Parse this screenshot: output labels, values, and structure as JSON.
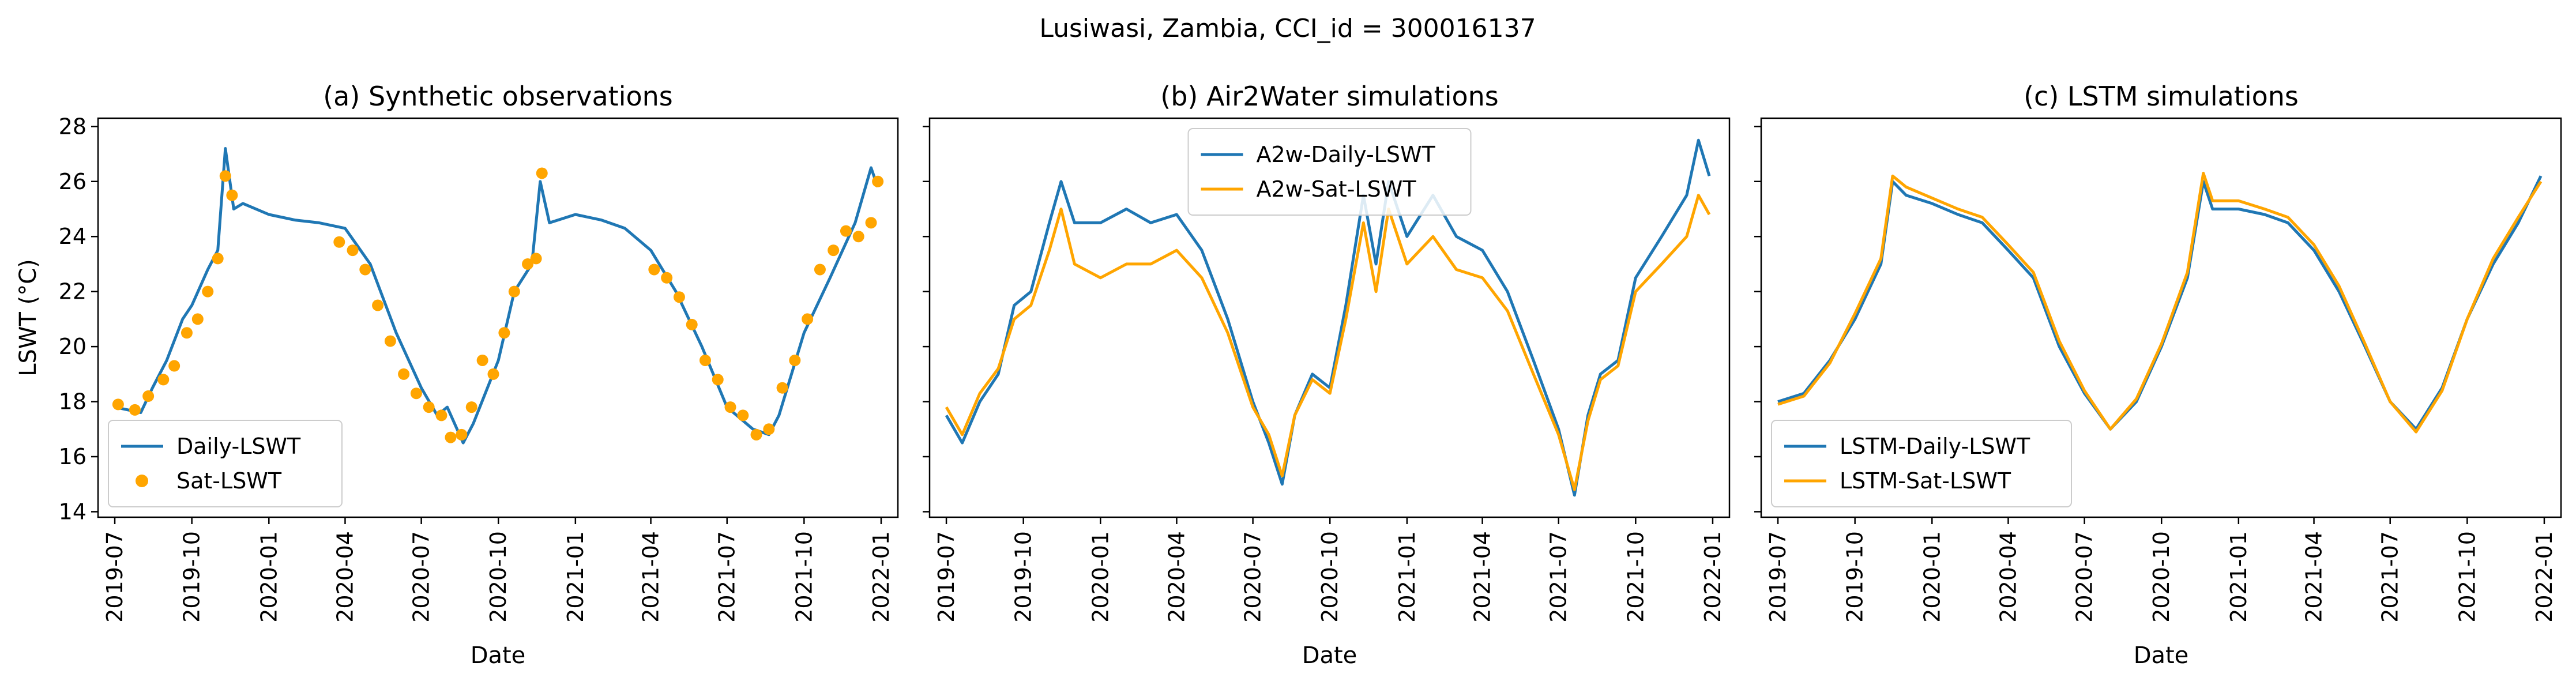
{
  "figure": {
    "suptitle": "Lusiwasi, Zambia, CCI_id = 300016137"
  },
  "colors": {
    "blue": "#1f77b4",
    "orange": "#ffa500"
  },
  "chart_data": [
    {
      "type": "line",
      "title": "(a) Synthetic observations",
      "xlabel": "Date",
      "ylabel": "LSWT (°C)",
      "xticks": [
        "2019-07",
        "2019-10",
        "2020-01",
        "2020-04",
        "2020-07",
        "2020-10",
        "2021-01",
        "2021-04",
        "2021-07",
        "2021-10",
        "2022-01"
      ],
      "yticks": [
        14,
        16,
        18,
        20,
        22,
        24,
        26,
        28
      ],
      "ylim": [
        13.8,
        28.3
      ],
      "xlim": [
        "2019-06-11",
        "2022-01-21"
      ],
      "grid": false,
      "legend": "lower left",
      "series": [
        {
          "name": "Daily-LSWT",
          "kind": "line",
          "color": "#1f77b4",
          "x": [
            "2019-07-01",
            "2019-08-01",
            "2019-08-15",
            "2019-09-01",
            "2019-09-20",
            "2019-10-01",
            "2019-10-20",
            "2019-11-01",
            "2019-11-10",
            "2019-11-20",
            "2019-12-01",
            "2020-01-01",
            "2020-02-01",
            "2020-03-01",
            "2020-04-01",
            "2020-05-01",
            "2020-06-01",
            "2020-07-01",
            "2020-07-20",
            "2020-08-01",
            "2020-08-20",
            "2020-09-01",
            "2020-10-01",
            "2020-10-20",
            "2020-11-10",
            "2020-11-20",
            "2020-12-01",
            "2021-01-01",
            "2021-02-01",
            "2021-03-01",
            "2021-04-01",
            "2021-05-01",
            "2021-06-01",
            "2021-07-01",
            "2021-08-01",
            "2021-08-20",
            "2021-09-01",
            "2021-10-01",
            "2021-11-01",
            "2021-12-01",
            "2021-12-20",
            "2021-12-28"
          ],
          "y": [
            17.8,
            17.6,
            18.5,
            19.5,
            21.0,
            21.5,
            22.8,
            23.5,
            27.2,
            25.0,
            25.2,
            24.8,
            24.6,
            24.5,
            24.3,
            23.0,
            20.5,
            18.5,
            17.5,
            17.8,
            16.5,
            17.2,
            19.5,
            22.0,
            23.0,
            26.0,
            24.5,
            24.8,
            24.6,
            24.3,
            23.5,
            22.0,
            20.0,
            17.8,
            17.0,
            16.8,
            17.5,
            20.5,
            22.5,
            24.5,
            26.5,
            25.8
          ]
        },
        {
          "name": "Sat-LSWT",
          "kind": "scatter",
          "color": "#ffa500",
          "x": [
            "2019-07-05",
            "2019-07-25",
            "2019-08-10",
            "2019-08-28",
            "2019-09-10",
            "2019-09-25",
            "2019-10-08",
            "2019-10-20",
            "2019-11-01",
            "2019-11-10",
            "2019-11-18",
            "2020-03-25",
            "2020-04-10",
            "2020-04-25",
            "2020-05-10",
            "2020-05-25",
            "2020-06-10",
            "2020-06-25",
            "2020-07-10",
            "2020-07-25",
            "2020-08-05",
            "2020-08-18",
            "2020-08-30",
            "2020-09-12",
            "2020-09-25",
            "2020-10-08",
            "2020-10-20",
            "2020-11-05",
            "2020-11-15",
            "2020-11-22",
            "2021-04-05",
            "2021-04-20",
            "2021-05-05",
            "2021-05-20",
            "2021-06-05",
            "2021-06-20",
            "2021-07-05",
            "2021-07-20",
            "2021-08-05",
            "2021-08-20",
            "2021-09-05",
            "2021-09-20",
            "2021-10-05",
            "2021-10-20",
            "2021-11-05",
            "2021-11-20",
            "2021-12-05",
            "2021-12-20",
            "2021-12-28"
          ],
          "y": [
            17.9,
            17.7,
            18.2,
            18.8,
            19.3,
            20.5,
            21.0,
            22.0,
            23.2,
            26.2,
            25.5,
            23.8,
            23.5,
            22.8,
            21.5,
            20.2,
            19.0,
            18.3,
            17.8,
            17.5,
            16.7,
            16.8,
            17.8,
            19.5,
            19.0,
            20.5,
            22.0,
            23.0,
            23.2,
            26.3,
            22.8,
            22.5,
            21.8,
            20.8,
            19.5,
            18.8,
            17.8,
            17.5,
            16.8,
            17.0,
            18.5,
            19.5,
            21.0,
            22.8,
            23.5,
            24.2,
            24.0,
            24.5,
            26.0
          ]
        }
      ]
    },
    {
      "type": "line",
      "title": "(b) Air2Water simulations",
      "xlabel": "Date",
      "xticks": [
        "2019-07",
        "2019-10",
        "2020-01",
        "2020-04",
        "2020-07",
        "2020-10",
        "2021-01",
        "2021-04",
        "2021-07",
        "2021-10",
        "2022-01"
      ],
      "yticks": [
        14,
        16,
        18,
        20,
        22,
        24,
        26,
        28
      ],
      "ylim": [
        13.8,
        28.3
      ],
      "xlim": [
        "2019-06-11",
        "2022-01-21"
      ],
      "grid": false,
      "legend": "upper center",
      "series": [
        {
          "name": "A2w-Daily-LSWT",
          "kind": "line",
          "color": "#1f77b4",
          "x": [
            "2019-07-01",
            "2019-07-20",
            "2019-08-10",
            "2019-09-01",
            "2019-09-20",
            "2019-10-10",
            "2019-11-01",
            "2019-11-15",
            "2019-12-01",
            "2020-01-01",
            "2020-02-01",
            "2020-03-01",
            "2020-04-01",
            "2020-05-01",
            "2020-06-01",
            "2020-07-01",
            "2020-07-20",
            "2020-08-05",
            "2020-08-20",
            "2020-09-10",
            "2020-10-01",
            "2020-10-20",
            "2020-11-10",
            "2020-11-25",
            "2020-12-10",
            "2021-01-01",
            "2021-02-01",
            "2021-03-01",
            "2021-04-01",
            "2021-05-01",
            "2021-06-01",
            "2021-07-01",
            "2021-07-20",
            "2021-08-05",
            "2021-08-20",
            "2021-09-10",
            "2021-10-01",
            "2021-11-01",
            "2021-12-01",
            "2021-12-15",
            "2021-12-28"
          ],
          "y": [
            17.5,
            16.5,
            18.0,
            19.0,
            21.5,
            22.0,
            24.5,
            26.0,
            24.5,
            24.5,
            25.0,
            24.5,
            24.8,
            23.5,
            21.0,
            18.0,
            16.5,
            15.0,
            17.5,
            19.0,
            18.5,
            21.5,
            25.5,
            23.0,
            26.0,
            24.0,
            25.5,
            24.0,
            23.5,
            22.0,
            19.5,
            17.0,
            14.6,
            17.5,
            19.0,
            19.5,
            22.5,
            24.0,
            25.5,
            27.5,
            26.2
          ]
        },
        {
          "name": "A2w-Sat-LSWT",
          "kind": "line",
          "color": "#ffa500",
          "x": [
            "2019-07-01",
            "2019-07-20",
            "2019-08-10",
            "2019-09-01",
            "2019-09-20",
            "2019-10-10",
            "2019-11-01",
            "2019-11-15",
            "2019-12-01",
            "2020-01-01",
            "2020-02-01",
            "2020-03-01",
            "2020-04-01",
            "2020-05-01",
            "2020-06-01",
            "2020-07-01",
            "2020-07-20",
            "2020-08-05",
            "2020-08-20",
            "2020-09-10",
            "2020-10-01",
            "2020-10-20",
            "2020-11-10",
            "2020-11-25",
            "2020-12-10",
            "2021-01-01",
            "2021-02-01",
            "2021-03-01",
            "2021-04-01",
            "2021-05-01",
            "2021-06-01",
            "2021-07-01",
            "2021-07-20",
            "2021-08-05",
            "2021-08-20",
            "2021-09-10",
            "2021-10-01",
            "2021-11-01",
            "2021-12-01",
            "2021-12-15",
            "2021-12-28"
          ],
          "y": [
            17.8,
            16.8,
            18.3,
            19.2,
            21.0,
            21.5,
            23.5,
            25.0,
            23.0,
            22.5,
            23.0,
            23.0,
            23.5,
            22.5,
            20.5,
            17.8,
            16.8,
            15.3,
            17.5,
            18.8,
            18.3,
            21.0,
            24.5,
            22.0,
            25.0,
            23.0,
            24.0,
            22.8,
            22.5,
            21.3,
            19.0,
            16.8,
            14.8,
            17.3,
            18.8,
            19.3,
            22.0,
            23.0,
            24.0,
            25.5,
            24.8
          ]
        }
      ]
    },
    {
      "type": "line",
      "title": "(c) LSTM simulations",
      "xlabel": "Date",
      "xticks": [
        "2019-07",
        "2019-10",
        "2020-01",
        "2020-04",
        "2020-07",
        "2020-10",
        "2021-01",
        "2021-04",
        "2021-07",
        "2021-10",
        "2022-01"
      ],
      "yticks": [
        14,
        16,
        18,
        20,
        22,
        24,
        26,
        28
      ],
      "ylim": [
        13.8,
        28.3
      ],
      "xlim": [
        "2019-06-11",
        "2022-01-21"
      ],
      "grid": false,
      "legend": "lower left",
      "series": [
        {
          "name": "LSTM-Daily-LSWT",
          "kind": "line",
          "color": "#1f77b4",
          "x": [
            "2019-07-01",
            "2019-08-01",
            "2019-09-01",
            "2019-10-01",
            "2019-11-01",
            "2019-11-15",
            "2019-12-01",
            "2020-01-01",
            "2020-02-01",
            "2020-03-01",
            "2020-04-01",
            "2020-05-01",
            "2020-06-01",
            "2020-07-01",
            "2020-08-01",
            "2020-09-01",
            "2020-10-01",
            "2020-11-01",
            "2020-11-20",
            "2020-12-01",
            "2021-01-01",
            "2021-02-01",
            "2021-03-01",
            "2021-04-01",
            "2021-05-01",
            "2021-06-01",
            "2021-07-01",
            "2021-08-01",
            "2021-09-01",
            "2021-10-01",
            "2021-11-01",
            "2021-12-01",
            "2021-12-28"
          ],
          "y": [
            18.0,
            18.3,
            19.5,
            21.0,
            23.0,
            26.0,
            25.5,
            25.2,
            24.8,
            24.5,
            23.5,
            22.5,
            20.0,
            18.3,
            17.0,
            18.0,
            20.0,
            22.5,
            26.0,
            25.0,
            25.0,
            24.8,
            24.5,
            23.5,
            22.0,
            20.0,
            18.0,
            17.0,
            18.5,
            21.0,
            23.0,
            24.5,
            26.2
          ]
        },
        {
          "name": "LSTM-Sat-LSWT",
          "kind": "line",
          "color": "#ffa500",
          "x": [
            "2019-07-01",
            "2019-08-01",
            "2019-09-01",
            "2019-10-01",
            "2019-11-01",
            "2019-11-15",
            "2019-12-01",
            "2020-01-01",
            "2020-02-01",
            "2020-03-01",
            "2020-04-01",
            "2020-05-01",
            "2020-06-01",
            "2020-07-01",
            "2020-08-01",
            "2020-09-01",
            "2020-10-01",
            "2020-11-01",
            "2020-11-20",
            "2020-12-01",
            "2021-01-01",
            "2021-02-01",
            "2021-03-01",
            "2021-04-01",
            "2021-05-01",
            "2021-06-01",
            "2021-07-01",
            "2021-08-01",
            "2021-09-01",
            "2021-10-01",
            "2021-11-01",
            "2021-12-01",
            "2021-12-28"
          ],
          "y": [
            17.9,
            18.2,
            19.4,
            21.2,
            23.2,
            26.2,
            25.8,
            25.4,
            25.0,
            24.7,
            23.7,
            22.7,
            20.2,
            18.4,
            17.0,
            18.1,
            20.1,
            22.7,
            26.3,
            25.3,
            25.3,
            25.0,
            24.7,
            23.7,
            22.2,
            20.1,
            18.0,
            16.9,
            18.4,
            21.0,
            23.2,
            24.7,
            26.0
          ]
        }
      ]
    }
  ]
}
